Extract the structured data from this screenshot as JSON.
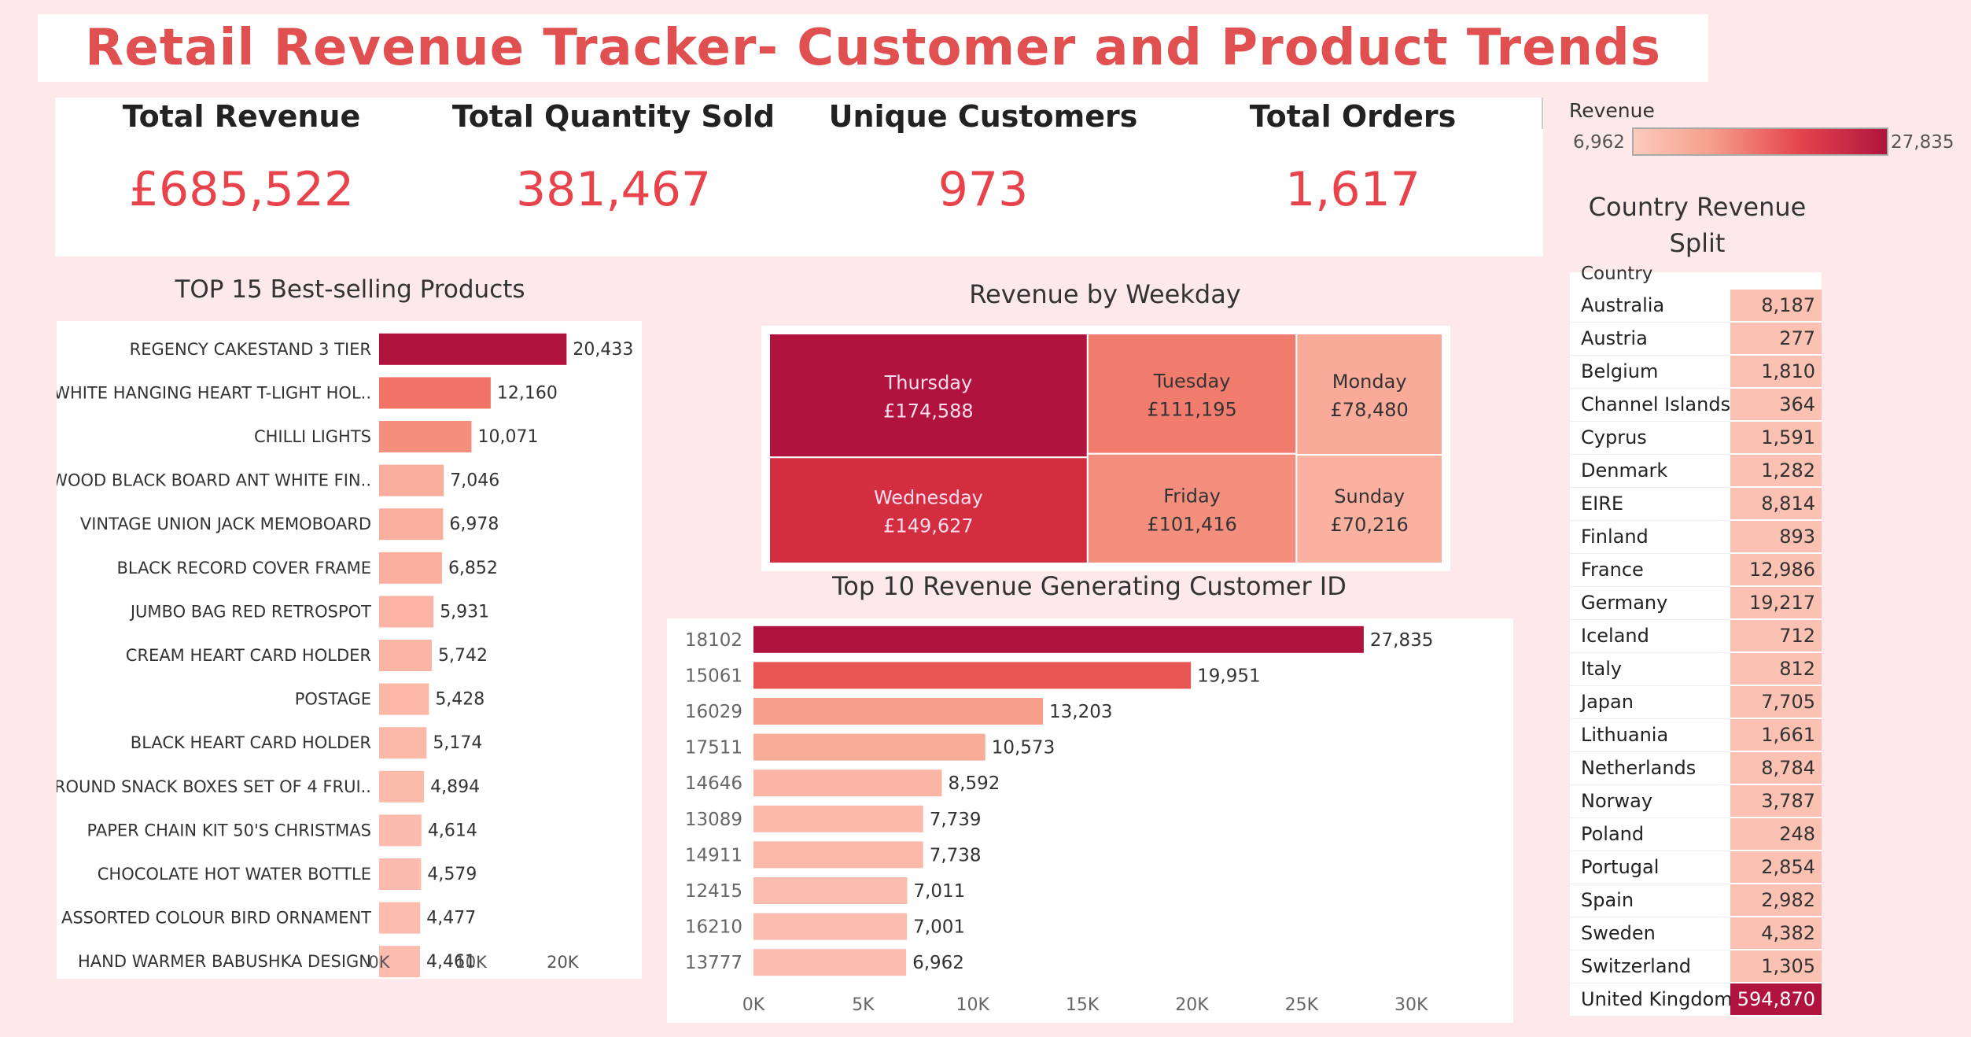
{
  "title": "Retail Revenue Tracker- Customer and Product Trends",
  "kpis": [
    {
      "label": "Total Revenue",
      "value": "£685,522"
    },
    {
      "label": "Total Quantity Sold",
      "value": "381,467"
    },
    {
      "label": "Unique Customers",
      "value": "973"
    },
    {
      "label": "Total Orders",
      "value": "1,617"
    }
  ],
  "legend": {
    "title": "Revenue",
    "min": "6,962",
    "max": "27,835"
  },
  "colors": {
    "accent": "#e05050",
    "kpi": "#e8434a",
    "dark": "#b0143e",
    "light": "#fdbcae"
  },
  "chart_data": [
    {
      "type": "bar",
      "title": "TOP 15 Best-selling Products",
      "orientation": "horizontal",
      "categories": [
        "REGENCY CAKESTAND 3 TIER",
        "WHITE HANGING HEART T-LIGHT HOL..",
        "CHILLI LIGHTS",
        "WOOD BLACK BOARD ANT WHITE FIN..",
        "VINTAGE UNION JACK MEMOBOARD",
        "BLACK RECORD COVER FRAME",
        "JUMBO BAG RED RETROSPOT",
        "CREAM HEART CARD HOLDER",
        "POSTAGE",
        "BLACK HEART CARD HOLDER",
        "ROUND SNACK BOXES SET OF 4 FRUI..",
        "PAPER CHAIN KIT 50'S CHRISTMAS",
        "CHOCOLATE HOT WATER BOTTLE",
        "ASSORTED COLOUR BIRD ORNAMENT",
        "HAND WARMER BABUSHKA DESIGN"
      ],
      "values": [
        20433,
        12160,
        10071,
        7046,
        6978,
        6852,
        5931,
        5742,
        5428,
        5174,
        4894,
        4614,
        4579,
        4477,
        4461
      ],
      "labels": [
        "20,433",
        "12,160",
        "10,071",
        "7,046",
        "6,978",
        "6,852",
        "5,931",
        "5,742",
        "5,428",
        "5,174",
        "4,894",
        "4,614",
        "4,579",
        "4,477",
        "4,461"
      ],
      "xticks": [
        "0K",
        "10K",
        "20K"
      ],
      "xlim": [
        0,
        30000
      ]
    },
    {
      "type": "treemap",
      "title": "Revenue by Weekday",
      "categories": [
        "Thursday",
        "Wednesday",
        "Tuesday",
        "Friday",
        "Monday",
        "Sunday"
      ],
      "values": [
        174588,
        149627,
        111195,
        101416,
        78480,
        70216
      ],
      "labels": [
        "£174,588",
        "£149,627",
        "£111,195",
        "£101,416",
        "£78,480",
        "£70,216"
      ]
    },
    {
      "type": "bar",
      "title": "Top 10 Revenue Generating Customer ID",
      "orientation": "horizontal",
      "categories": [
        "18102",
        "15061",
        "16029",
        "17511",
        "14646",
        "13089",
        "14911",
        "12415",
        "16210",
        "13777"
      ],
      "values": [
        27835,
        19951,
        13203,
        10573,
        8592,
        7739,
        7738,
        7011,
        7001,
        6962
      ],
      "labels": [
        "27,835",
        "19,951",
        "13,203",
        "10,573",
        "8,592",
        "7,739",
        "7,738",
        "7,011",
        "7,001",
        "6,962"
      ],
      "xticks": [
        "0K",
        "5K",
        "10K",
        "15K",
        "20K",
        "25K",
        "30K"
      ],
      "xlim": [
        0,
        32000
      ]
    },
    {
      "type": "table",
      "title": "Country Revenue Split",
      "column": "Country",
      "categories": [
        "Australia",
        "Austria",
        "Belgium",
        "Channel Islands",
        "Cyprus",
        "Denmark",
        "EIRE",
        "Finland",
        "France",
        "Germany",
        "Iceland",
        "Italy",
        "Japan",
        "Lithuania",
        "Netherlands",
        "Norway",
        "Poland",
        "Portugal",
        "Spain",
        "Sweden",
        "Switzerland",
        "United Kingdom"
      ],
      "values": [
        8187,
        277,
        1810,
        364,
        1591,
        1282,
        8814,
        893,
        12986,
        19217,
        712,
        812,
        7705,
        1661,
        8784,
        3787,
        248,
        2854,
        2982,
        4382,
        1305,
        594870
      ],
      "labels": [
        "8,187",
        "277",
        "1,810",
        "364",
        "1,591",
        "1,282",
        "8,814",
        "893",
        "12,986",
        "19,217",
        "712",
        "812",
        "7,705",
        "1,661",
        "8,784",
        "3,787",
        "248",
        "2,854",
        "2,982",
        "4,382",
        "1,305",
        "594,870"
      ]
    }
  ]
}
